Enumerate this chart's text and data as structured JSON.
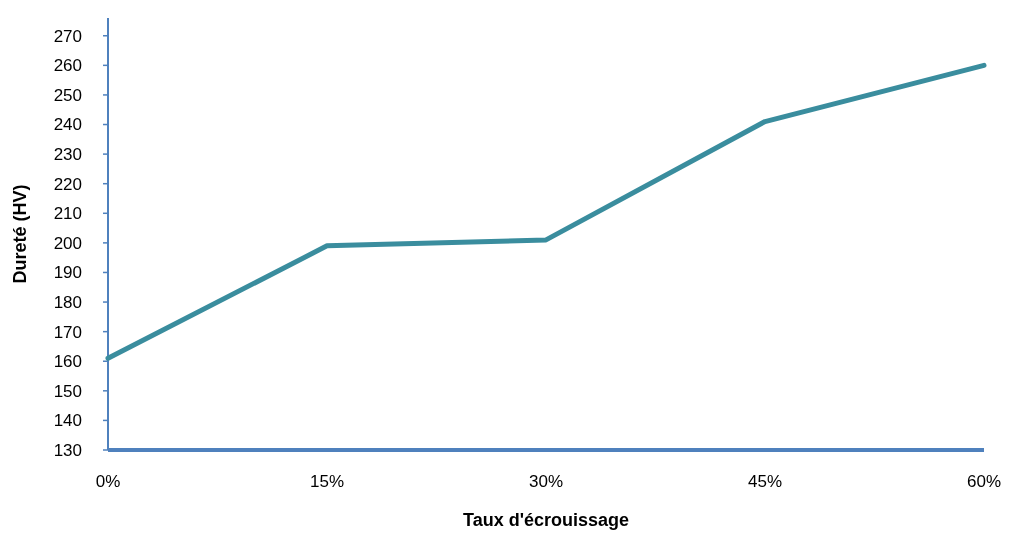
{
  "chart_data": {
    "type": "line",
    "xlabel": "Taux d'écrouissage",
    "ylabel": "Dureté (HV)",
    "x": [
      0,
      15,
      30,
      45,
      60
    ],
    "series": [
      {
        "color": "#3a8d9e",
        "values": [
          161,
          199,
          201,
          241,
          260
        ]
      }
    ],
    "xlim": [
      0,
      60
    ],
    "xticks": [
      {
        "value": 0,
        "label": "0%"
      },
      {
        "value": 15,
        "label": "15%"
      },
      {
        "value": 30,
        "label": "30%"
      },
      {
        "value": 45,
        "label": "45%"
      },
      {
        "value": 60,
        "label": "60%"
      }
    ],
    "ylim": [
      130,
      276
    ],
    "yticks": [
      130,
      140,
      150,
      160,
      170,
      180,
      190,
      200,
      210,
      220,
      230,
      240,
      250,
      260,
      270
    ],
    "marker": "none",
    "line_style": "solid"
  }
}
